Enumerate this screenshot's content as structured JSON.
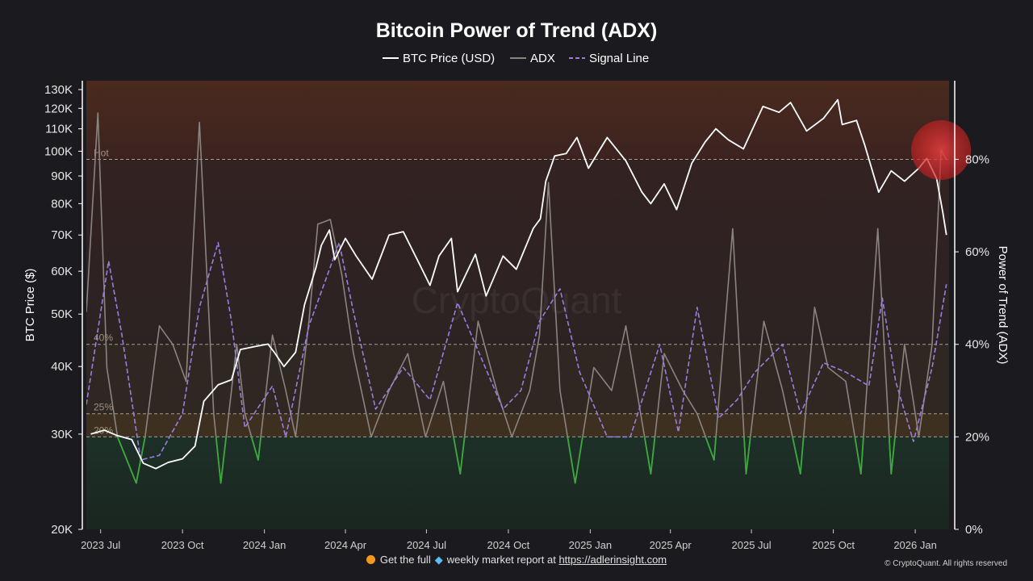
{
  "chart_data": {
    "type": "line",
    "title": "Bitcoin Power of Trend (ADX)",
    "legend": [
      "BTC Price (USD)",
      "ADX",
      "Signal Line"
    ],
    "ylabel_left": "BTC Price ($)",
    "ylabel_right": "Power of Trend (ADX)",
    "y_left_scale": "log",
    "y_left_range": [
      20000,
      135000
    ],
    "y_right_range": [
      0,
      97
    ],
    "left_ticks": [
      "130K",
      "120K",
      "110K",
      "100K",
      "90K",
      "80K",
      "70K",
      "60K",
      "50K",
      "40K",
      "30K",
      "20K"
    ],
    "right_ticks": [
      "80%",
      "60%",
      "40%",
      "20%",
      "0%"
    ],
    "x_ticks": [
      "2023 Jul",
      "2023 Oct",
      "2024 Jan",
      "2024 Apr",
      "2024 Jul",
      "2024 Oct",
      "2025 Jan",
      "2025 Apr",
      "2025 Jul",
      "2025 Oct",
      "2026 Jan"
    ],
    "x_range": [
      "2023-06-15",
      "2026-02-08"
    ],
    "zones": [
      {
        "label": "Hot",
        "level": 80,
        "color": "#e07030"
      },
      {
        "label": "40%",
        "level": 40,
        "color": "#7a5a35"
      },
      {
        "label": "25%",
        "level": 25,
        "color": "#d58b25"
      },
      {
        "label": "20%",
        "level": 20,
        "color": "#2e4a3a"
      }
    ],
    "adx_green_threshold": 20,
    "colors": {
      "price": "#ffffff",
      "adx": "#8a8480",
      "adx_low": "#3aa83a",
      "signal": "#9b7de0",
      "highlight": "#e03030"
    },
    "series": [
      {
        "name": "BTC Price (USD)",
        "x": [
          "2023-06-20",
          "2023-07-05",
          "2023-07-20",
          "2023-08-05",
          "2023-08-18",
          "2023-09-01",
          "2023-09-15",
          "2023-10-01",
          "2023-10-15",
          "2023-10-25",
          "2023-11-10",
          "2023-11-25",
          "2023-12-05",
          "2023-12-20",
          "2024-01-05",
          "2024-01-12",
          "2024-01-23",
          "2024-02-05",
          "2024-02-15",
          "2024-02-28",
          "2024-03-05",
          "2024-03-14",
          "2024-03-20",
          "2024-04-01",
          "2024-04-13",
          "2024-05-01",
          "2024-05-20",
          "2024-06-05",
          "2024-06-25",
          "2024-07-05",
          "2024-07-15",
          "2024-07-29",
          "2024-08-05",
          "2024-08-25",
          "2024-09-06",
          "2024-09-25",
          "2024-10-10",
          "2024-10-29",
          "2024-11-06",
          "2024-11-12",
          "2024-11-22",
          "2024-12-05",
          "2024-12-17",
          "2024-12-30",
          "2025-01-20",
          "2025-02-10",
          "2025-02-28",
          "2025-03-10",
          "2025-03-25",
          "2025-04-08",
          "2025-04-25",
          "2025-05-10",
          "2025-05-22",
          "2025-06-05",
          "2025-06-22",
          "2025-07-14",
          "2025-08-01",
          "2025-08-14",
          "2025-09-01",
          "2025-09-20",
          "2025-10-06",
          "2025-10-11",
          "2025-10-27",
          "2025-11-05",
          "2025-11-21",
          "2025-12-05",
          "2025-12-20",
          "2026-01-05",
          "2026-01-14",
          "2026-01-25",
          "2026-02-01",
          "2026-02-05"
        ],
        "values": [
          30000,
          30500,
          29800,
          29300,
          26500,
          25900,
          26600,
          27000,
          28500,
          34500,
          37000,
          37800,
          43000,
          43500,
          44000,
          42500,
          40000,
          42500,
          52000,
          61000,
          67000,
          71500,
          63000,
          69000,
          64000,
          58000,
          70000,
          71000,
          61000,
          56500,
          64000,
          69000,
          55000,
          64500,
          54000,
          64000,
          60500,
          72000,
          75000,
          88000,
          98000,
          99000,
          106000,
          93000,
          106000,
          96000,
          84000,
          80000,
          87000,
          78000,
          95000,
          104000,
          110000,
          105000,
          101000,
          121000,
          118000,
          123000,
          109000,
          115000,
          124500,
          112000,
          114000,
          103000,
          84000,
          92000,
          88000,
          93000,
          97000,
          89000,
          77000,
          70000
        ]
      },
      {
        "name": "ADX",
        "x": [
          "2023-06-15",
          "2023-06-28",
          "2023-07-08",
          "2023-07-20",
          "2023-08-10",
          "2023-08-20",
          "2023-09-05",
          "2023-09-20",
          "2023-10-05",
          "2023-10-20",
          "2023-11-05",
          "2023-11-13",
          "2023-12-01",
          "2023-12-10",
          "2023-12-25",
          "2024-01-10",
          "2024-01-25",
          "2024-02-05",
          "2024-02-20",
          "2024-03-01",
          "2024-03-15",
          "2024-03-28",
          "2024-04-10",
          "2024-04-30",
          "2024-05-20",
          "2024-06-10",
          "2024-06-30",
          "2024-07-20",
          "2024-08-08",
          "2024-08-28",
          "2024-09-18",
          "2024-10-05",
          "2024-10-25",
          "2024-11-05",
          "2024-11-15",
          "2024-11-28",
          "2024-12-15",
          "2025-01-05",
          "2025-01-25",
          "2025-02-10",
          "2025-03-10",
          "2025-03-25",
          "2025-04-15",
          "2025-05-01",
          "2025-05-20",
          "2025-06-10",
          "2025-06-25",
          "2025-07-15",
          "2025-08-05",
          "2025-08-25",
          "2025-09-10",
          "2025-09-25",
          "2025-10-15",
          "2025-11-01",
          "2025-11-20",
          "2025-12-05",
          "2025-12-20",
          "2026-01-05",
          "2026-01-20",
          "2026-01-30",
          "2026-02-05"
        ],
        "values": [
          47,
          90,
          35,
          20,
          10,
          20,
          44,
          40,
          32,
          88,
          25,
          10,
          40,
          25,
          15,
          42,
          30,
          20,
          45,
          66,
          67,
          55,
          38,
          20,
          30,
          38,
          20,
          32,
          12,
          45,
          30,
          20,
          30,
          42,
          75,
          30,
          10,
          35,
          30,
          44,
          12,
          38,
          30,
          25,
          15,
          65,
          12,
          45,
          30,
          12,
          48,
          35,
          32,
          12,
          65,
          12,
          40,
          20,
          40,
          82,
          80
        ]
      },
      {
        "name": "Signal Line",
        "x": [
          "2023-06-15",
          "2023-07-10",
          "2023-07-25",
          "2023-08-15",
          "2023-09-05",
          "2023-10-01",
          "2023-10-20",
          "2023-11-10",
          "2023-11-25",
          "2023-12-10",
          "2024-01-10",
          "2024-01-25",
          "2024-02-20",
          "2024-03-25",
          "2024-04-10",
          "2024-05-05",
          "2024-06-05",
          "2024-07-05",
          "2024-08-05",
          "2024-08-25",
          "2024-09-25",
          "2024-10-15",
          "2024-11-05",
          "2024-11-28",
          "2024-12-20",
          "2025-01-20",
          "2025-02-15",
          "2025-03-20",
          "2025-04-10",
          "2025-05-01",
          "2025-05-25",
          "2025-06-15",
          "2025-07-05",
          "2025-08-05",
          "2025-08-25",
          "2025-09-20",
          "2025-10-15",
          "2025-11-10",
          "2025-11-25",
          "2025-12-10",
          "2025-12-30",
          "2026-01-20",
          "2026-02-05"
        ],
        "values": [
          27,
          58,
          42,
          15,
          16,
          25,
          48,
          62,
          45,
          22,
          31,
          20,
          44,
          62,
          47,
          26,
          35,
          28,
          49,
          40,
          26,
          30,
          45,
          52,
          34,
          20,
          20,
          40,
          21,
          48,
          24,
          28,
          34,
          40,
          25,
          36,
          34,
          31,
          50,
          32,
          19,
          35,
          53
        ]
      }
    ],
    "watermark": "CryptoQuant"
  },
  "footer": {
    "text_before": "Get the full",
    "text_after": "weekly market report at",
    "link": "https://adlerinsight.com",
    "copyright": "© CryptoQuant. All rights reserved"
  }
}
